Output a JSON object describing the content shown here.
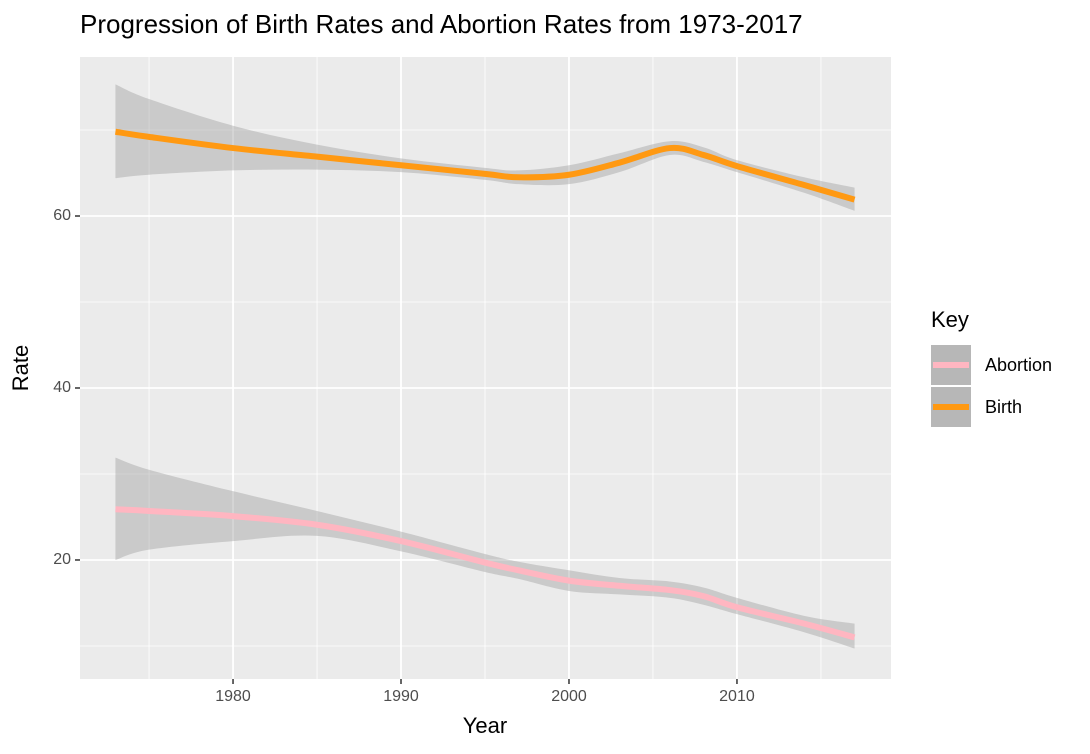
{
  "chart_data": {
    "type": "line",
    "title": "Progression of Birth Rates and Abortion Rates from 1973-2017",
    "x_label": "Year",
    "y_label": "Rate",
    "legend_title": "Key",
    "x": [
      1973,
      1975,
      1980,
      1985,
      1990,
      1995,
      1997,
      2000,
      2003,
      2006,
      2008,
      2010,
      2014,
      2017
    ],
    "series": [
      {
        "name": "Abortion",
        "color": "#ffb6c1",
        "values": [
          25.9,
          25.7,
          25.1,
          24.1,
          22.2,
          19.7,
          18.8,
          17.6,
          17.0,
          16.5,
          15.8,
          14.5,
          12.6,
          11.0
        ],
        "upper": [
          31.9,
          30.5,
          28.0,
          25.7,
          23.3,
          20.7,
          19.8,
          18.8,
          17.9,
          17.5,
          16.8,
          15.6,
          13.5,
          12.6
        ],
        "lower": [
          20.0,
          21.2,
          22.2,
          22.8,
          21.0,
          18.6,
          17.8,
          16.4,
          16.0,
          15.6,
          14.8,
          13.7,
          11.6,
          9.7
        ]
      },
      {
        "name": "Birth",
        "color": "#ff9912",
        "values": [
          69.8,
          69.2,
          67.9,
          66.9,
          65.9,
          64.9,
          64.5,
          64.8,
          66.2,
          67.9,
          67.1,
          65.8,
          63.6,
          61.9
        ],
        "upper": [
          75.3,
          73.6,
          70.5,
          68.3,
          66.7,
          65.6,
          65.3,
          65.9,
          67.3,
          68.7,
          68.0,
          66.5,
          64.5,
          63.3
        ],
        "lower": [
          64.4,
          64.8,
          65.3,
          65.4,
          65.1,
          64.2,
          63.7,
          63.7,
          65.1,
          67.1,
          66.3,
          65.1,
          62.7,
          60.6
        ]
      }
    ],
    "band_color": "#999999",
    "xlim": [
      1970.89,
      2019.17
    ],
    "xticks": [
      1980,
      1990,
      2000,
      2010
    ],
    "ylim": [
      6.16,
      78.49
    ],
    "yticks": [
      20,
      40,
      60
    ],
    "grid": true,
    "legend": "right"
  }
}
